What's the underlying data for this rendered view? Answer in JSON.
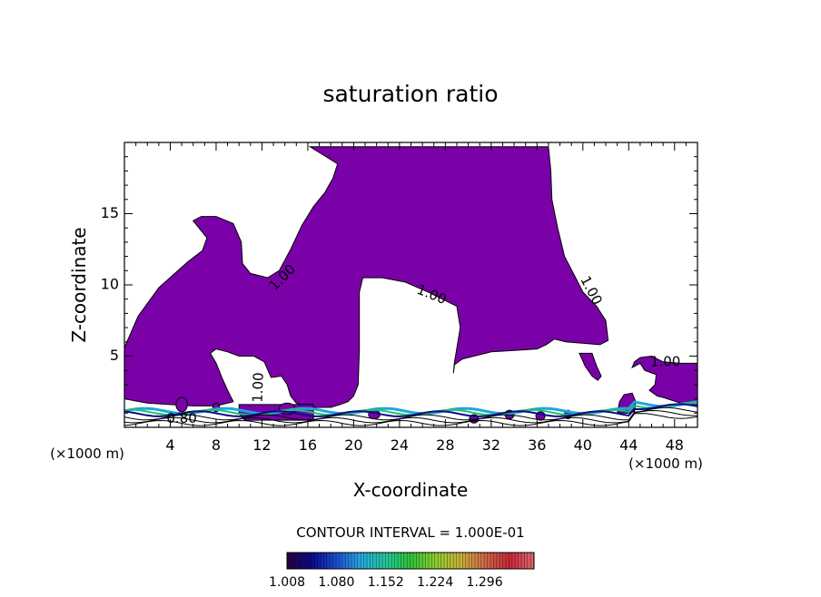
{
  "chart_data": {
    "type": "contour",
    "title": "saturation ratio",
    "xlabel": "X-coordinate",
    "ylabel": "Z-coordinate",
    "x_unit": "(×1000 m)",
    "x_unit_right": "(×1000 m)",
    "xlim": [
      0,
      50
    ],
    "ylim": [
      0,
      20
    ],
    "x_ticks": [
      4,
      8,
      12,
      16,
      20,
      24,
      28,
      32,
      36,
      40,
      44,
      48
    ],
    "y_ticks": [
      5,
      10,
      15
    ],
    "fill_threshold": 1.008,
    "fill_color": "#7a00a8",
    "contour_labels": [
      {
        "text": "1.00",
        "x": 13.8,
        "y": 10.5,
        "angle": -45
      },
      {
        "text": "1.00",
        "x": 26.8,
        "y": 9.3,
        "angle": 22
      },
      {
        "text": "1.00",
        "x": 40.7,
        "y": 9.6,
        "angle": 62
      },
      {
        "text": "1.00",
        "x": 47.2,
        "y": 4.6,
        "angle": 0
      },
      {
        "text": "1.00",
        "x": 11.7,
        "y": 2.8,
        "angle": -88
      },
      {
        "text": "0.80",
        "x": 5.0,
        "y": 0.6,
        "angle": 0
      }
    ],
    "region_polygons": [
      [
        [
          0,
          2.0
        ],
        [
          0,
          5.6
        ],
        [
          1.2,
          7.8
        ],
        [
          3.0,
          9.8
        ],
        [
          5.5,
          11.6
        ],
        [
          6.8,
          12.4
        ],
        [
          7.2,
          13.3
        ],
        [
          6.5,
          14.0
        ],
        [
          6.0,
          14.5
        ],
        [
          6.7,
          14.8
        ],
        [
          8.0,
          14.8
        ],
        [
          9.5,
          14.3
        ],
        [
          10.2,
          13.0
        ],
        [
          10.3,
          11.5
        ],
        [
          11.0,
          10.8
        ],
        [
          12.5,
          10.5
        ],
        [
          13.5,
          11.0
        ],
        [
          14.5,
          12.5
        ],
        [
          15.5,
          14.2
        ],
        [
          16.5,
          15.5
        ],
        [
          17.5,
          16.5
        ],
        [
          18.2,
          17.5
        ],
        [
          18.6,
          18.5
        ],
        [
          16.2,
          19.7
        ],
        [
          37.0,
          19.7
        ],
        [
          37.2,
          18.0
        ],
        [
          37.3,
          16.0
        ],
        [
          37.8,
          14.0
        ],
        [
          38.4,
          12.0
        ],
        [
          39.3,
          10.6
        ],
        [
          40.0,
          9.5
        ],
        [
          41.2,
          8.5
        ],
        [
          42.0,
          7.5
        ],
        [
          42.2,
          6.1
        ],
        [
          41.5,
          5.8
        ],
        [
          38.5,
          6.0
        ],
        [
          37.5,
          6.2
        ],
        [
          36.8,
          5.8
        ],
        [
          36.0,
          5.5
        ],
        [
          34.0,
          5.4
        ],
        [
          32.0,
          5.3
        ],
        [
          30.5,
          5.0
        ],
        [
          29.5,
          4.8
        ],
        [
          28.8,
          4.4
        ],
        [
          28.7,
          3.8
        ],
        [
          28.8,
          4.6
        ],
        [
          29.3,
          7.0
        ],
        [
          29.0,
          8.5
        ],
        [
          26.5,
          9.5
        ],
        [
          24.5,
          10.2
        ],
        [
          22.5,
          10.5
        ],
        [
          20.8,
          10.5
        ],
        [
          20.5,
          9.5
        ],
        [
          20.5,
          5.5
        ],
        [
          20.4,
          3.0
        ],
        [
          20.0,
          2.2
        ],
        [
          19.5,
          1.8
        ],
        [
          18.8,
          1.6
        ],
        [
          18.0,
          1.4
        ],
        [
          16.0,
          1.4
        ],
        [
          15.0,
          1.7
        ],
        [
          14.5,
          2.2
        ],
        [
          14.2,
          3.0
        ],
        [
          13.7,
          3.6
        ],
        [
          12.8,
          3.5
        ],
        [
          12.2,
          4.6
        ],
        [
          11.3,
          5.0
        ],
        [
          10.0,
          5.0
        ],
        [
          9.0,
          5.3
        ],
        [
          8.0,
          5.5
        ],
        [
          7.5,
          5.2
        ],
        [
          8.0,
          4.5
        ],
        [
          8.5,
          3.5
        ],
        [
          9.0,
          2.6
        ],
        [
          9.5,
          1.8
        ],
        [
          8.0,
          1.5
        ],
        [
          6.0,
          1.5
        ],
        [
          4.0,
          1.6
        ],
        [
          2.0,
          1.7
        ]
      ],
      [
        [
          39.7,
          5.2
        ],
        [
          40.2,
          4.3
        ],
        [
          40.8,
          3.6
        ],
        [
          41.3,
          3.3
        ],
        [
          41.6,
          3.6
        ],
        [
          41.2,
          4.3
        ],
        [
          40.8,
          5.2
        ]
      ],
      [
        [
          43.0,
          1.0
        ],
        [
          43.2,
          1.8
        ],
        [
          43.6,
          2.3
        ],
        [
          44.3,
          2.4
        ],
        [
          44.6,
          1.8
        ],
        [
          44.5,
          1.1
        ],
        [
          44.0,
          1.0
        ]
      ],
      [
        [
          44.3,
          4.2
        ],
        [
          44.5,
          4.6
        ],
        [
          45.0,
          4.9
        ],
        [
          46.0,
          5.0
        ],
        [
          47.0,
          4.6
        ],
        [
          48.5,
          4.5
        ],
        [
          50.0,
          4.5
        ],
        [
          50.0,
          1.5
        ],
        [
          48.5,
          1.7
        ],
        [
          47.0,
          2.1
        ],
        [
          46.5,
          2.2
        ],
        [
          45.8,
          2.6
        ],
        [
          46.3,
          3.0
        ],
        [
          46.4,
          3.7
        ],
        [
          45.4,
          4.0
        ],
        [
          45.0,
          4.5
        ]
      ],
      [
        [
          10.0,
          1.0
        ],
        [
          10.5,
          0.5
        ],
        [
          16.5,
          0.5
        ],
        [
          16.5,
          1.6
        ],
        [
          10.0,
          1.6
        ]
      ]
    ],
    "colorbar": {
      "label": "CONTOUR INTERVAL = 1.000E-01",
      "tick_labels": [
        "1.008",
        "1.080",
        "1.152",
        "1.224",
        "1.296"
      ],
      "min": 1.008,
      "max": 1.368,
      "colors": [
        "#2b0040",
        "#0a0a8a",
        "#1a4fd0",
        "#2aa9e0",
        "#23c99a",
        "#2ec43a",
        "#8fcf30",
        "#c9b43a",
        "#d06a4a",
        "#c8283a",
        "#e06a6a"
      ]
    }
  }
}
